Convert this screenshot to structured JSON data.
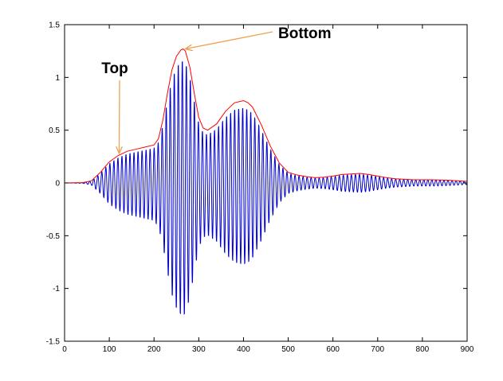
{
  "chart_data": {
    "type": "line",
    "title": "",
    "xlabel": "",
    "ylabel": "",
    "xlim": [
      0,
      900
    ],
    "ylim": [
      -1.5,
      1.5
    ],
    "grid": false,
    "x_ticks": [
      0,
      100,
      200,
      300,
      400,
      500,
      600,
      700,
      800,
      900
    ],
    "y_ticks": [
      -1.5,
      -1,
      -0.5,
      0,
      0.5,
      1,
      1.5
    ],
    "x_tick_labels": [
      "0",
      "100",
      "200",
      "300",
      "400",
      "500",
      "600",
      "700",
      "800",
      "900"
    ],
    "y_tick_labels": [
      "-1.5",
      "-1",
      "-0.5",
      "0",
      "0.5",
      "1",
      "1.5"
    ],
    "series": [
      {
        "role": "signal",
        "color": "#0000cc",
        "x_start": 0,
        "x_end": 900,
        "oscillation_period": 9,
        "positive_peak_scale": 0.92,
        "negative_peak_scale": 1.0
      },
      {
        "role": "envelope",
        "color": "#ff0000",
        "x": [
          0,
          40,
          60,
          80,
          100,
          120,
          140,
          160,
          180,
          200,
          210,
          220,
          230,
          240,
          250,
          260,
          265,
          270,
          280,
          290,
          300,
          310,
          320,
          340,
          360,
          380,
          400,
          410,
          420,
          440,
          460,
          480,
          500,
          520,
          540,
          560,
          580,
          600,
          620,
          640,
          660,
          680,
          700,
          720,
          740,
          760,
          780,
          800,
          820,
          840,
          860,
          880,
          900
        ],
        "values": [
          0,
          0.003,
          0.02,
          0.1,
          0.2,
          0.26,
          0.3,
          0.32,
          0.34,
          0.36,
          0.42,
          0.6,
          0.85,
          1.07,
          1.2,
          1.26,
          1.27,
          1.25,
          1.1,
          0.85,
          0.62,
          0.52,
          0.5,
          0.56,
          0.68,
          0.76,
          0.78,
          0.76,
          0.72,
          0.55,
          0.35,
          0.19,
          0.1,
          0.075,
          0.06,
          0.05,
          0.055,
          0.065,
          0.08,
          0.085,
          0.09,
          0.08,
          0.065,
          0.05,
          0.04,
          0.035,
          0.03,
          0.03,
          0.03,
          0.028,
          0.025,
          0.02,
          0.015
        ]
      }
    ],
    "annotations": [
      {
        "text": "Top",
        "color": "#000000",
        "arrow_color": "#f0a050",
        "point_x": 122,
        "point_y": 0.28
      },
      {
        "text": "Bottom",
        "color": "#000000",
        "arrow_color": "#f0a050",
        "point_x": 270,
        "point_y": 1.27
      }
    ]
  }
}
